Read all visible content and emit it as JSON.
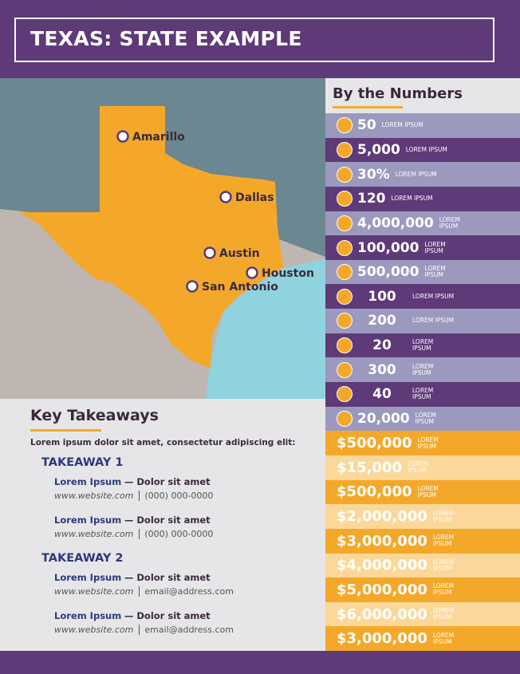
{
  "header": {
    "title": "TEXAS: STATE EXAMPLE"
  },
  "map": {
    "cities": [
      "Amarillo",
      "Dallas",
      "Austin",
      "Houston",
      "San Antonio"
    ]
  },
  "numbers": {
    "title": "By the Numbers",
    "rows": [
      {
        "value": "50",
        "label": "LOREM IPSUM"
      },
      {
        "value": "5,000",
        "label": "LOREM IPSUM"
      },
      {
        "value": "30%",
        "label": "LOREM IPSUM"
      },
      {
        "value": "120",
        "label": "LOREM IPSUM"
      },
      {
        "value": "4,000,000",
        "label": "LOREM IPSUM"
      },
      {
        "value": "100,000",
        "label": "LOREM IPSUM"
      },
      {
        "value": "500,000",
        "label": "LOREM IPSUM"
      },
      {
        "value": "100",
        "label": "LOREM IPSUM"
      },
      {
        "value": "200",
        "label": "LOREM IPSUM"
      },
      {
        "value": "20",
        "label": "LOREM IPSUM"
      },
      {
        "value": "300",
        "label": "LOREM IPSUM"
      },
      {
        "value": "40",
        "label": "LOREM IPSUM"
      },
      {
        "value": "20,000",
        "label": "LOREM IPSUM"
      },
      {
        "value": "$500,000",
        "label": "LOREM IPSUM"
      },
      {
        "value": "$15,000",
        "label": "LOREM IPSUM"
      },
      {
        "value": "$500,000",
        "label": "LOREM IPSUM"
      },
      {
        "value": "$2,000,000",
        "label": "LOREM IPSUM"
      },
      {
        "value": "$3,000,000",
        "label": "LOREM IPSUM"
      },
      {
        "value": "$4,000,000",
        "label": "LOREM IPSUM"
      },
      {
        "value": "$5,000,000",
        "label": "LOREM IPSUM"
      },
      {
        "value": "$6,000,000",
        "label": "LOREM IPSUM"
      },
      {
        "value": "$3,000,000",
        "label": "LOREM IPSUM"
      }
    ]
  },
  "takeaways": {
    "title": "Key Takeaways",
    "intro": "Lorem ipsum dolor sit amet, consectetur adipiscing elit:",
    "sections": [
      {
        "heading": "TAKEAWAY 1",
        "items": [
          {
            "name": "Lorem Ipsum",
            "role": "— Dolor sit amet",
            "website": "www.website.com",
            "contact": "(000) 000-0000"
          },
          {
            "name": "Lorem Ipsum",
            "role": "— Dolor sit amet",
            "website": "www.website.com",
            "contact": "(000) 000-0000"
          }
        ]
      },
      {
        "heading": "TAKEAWAY 2",
        "items": [
          {
            "name": "Lorem Ipsum",
            "role": "— Dolor sit amet",
            "website": "www.website.com",
            "contact": "email@address.com"
          },
          {
            "name": "Lorem Ipsum",
            "role": "— Dolor sit amet",
            "website": "www.website.com",
            "contact": "email@address.com"
          }
        ]
      }
    ]
  }
}
